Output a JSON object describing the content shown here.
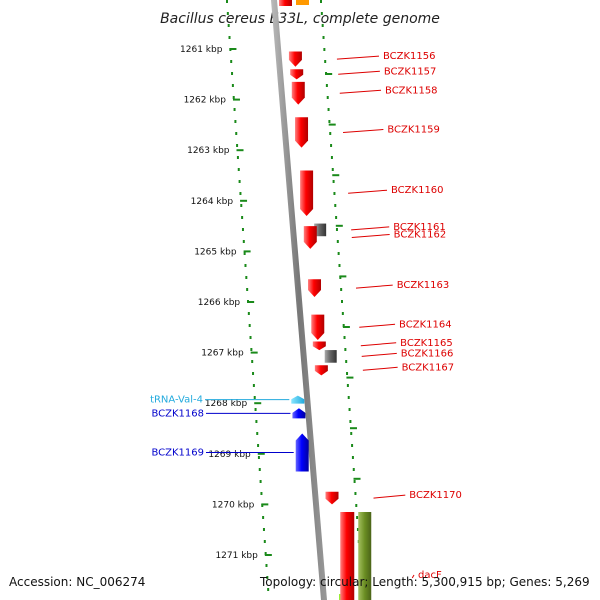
{
  "title": "Bacillus cereus E33L, complete genome",
  "footer": {
    "accession": "Accession: NC_006274",
    "topology": "Topology: circular; Length: 5,300,915 bp; Genes: 5,269"
  },
  "colors": {
    "red_gene": "#ff0000",
    "blue_gene": "#0000ff",
    "gray_gene": "#666666",
    "trna": "#33ccee",
    "olive_gene": "#6b8e23",
    "axis_ticks": "#1a8a1a",
    "red_label": "#dd0000",
    "blue_label": "#0000cc",
    "trna_label": "#22aadd"
  },
  "ruler": {
    "unit": "kbp",
    "ticks": [
      {
        "label": "1261 kbp",
        "kbp": 1261
      },
      {
        "label": "1262 kbp",
        "kbp": 1262
      },
      {
        "label": "1263 kbp",
        "kbp": 1263
      },
      {
        "label": "1264 kbp",
        "kbp": 1264
      },
      {
        "label": "1265 kbp",
        "kbp": 1265
      },
      {
        "label": "1266 kbp",
        "kbp": 1266
      },
      {
        "label": "1267 kbp",
        "kbp": 1267
      },
      {
        "label": "1268 kbp",
        "kbp": 1268
      },
      {
        "label": "1269 kbp",
        "kbp": 1269
      },
      {
        "label": "1270 kbp",
        "kbp": 1270
      },
      {
        "label": "1271 kbp",
        "kbp": 1271
      }
    ]
  },
  "genes": [
    {
      "name": "BCZK1156",
      "strand": "-",
      "color": "red",
      "start": 1261.05,
      "end": 1261.35
    },
    {
      "name": "BCZK1157",
      "strand": "-",
      "color": "red",
      "start": 1261.4,
      "end": 1261.6
    },
    {
      "name": "BCZK1158",
      "strand": "-",
      "color": "red",
      "start": 1261.65,
      "end": 1262.1
    },
    {
      "name": "BCZK1159",
      "strand": "-",
      "color": "red",
      "start": 1262.35,
      "end": 1262.95
    },
    {
      "name": "BCZK1160",
      "strand": "-",
      "color": "red",
      "start": 1263.4,
      "end": 1264.3
    },
    {
      "name": "BCZK1161",
      "strand": "+",
      "color": "gray",
      "start": 1264.45,
      "end": 1264.7
    },
    {
      "name": "BCZK1162",
      "strand": "-",
      "color": "red",
      "start": 1264.5,
      "end": 1264.95
    },
    {
      "name": "BCZK1163",
      "strand": "-",
      "color": "red",
      "start": 1265.55,
      "end": 1265.9
    },
    {
      "name": "BCZK1164",
      "strand": "-",
      "color": "red",
      "start": 1266.25,
      "end": 1266.75
    },
    {
      "name": "BCZK1165",
      "strand": "-",
      "color": "red",
      "start": 1266.78,
      "end": 1266.95
    },
    {
      "name": "BCZK1166",
      "strand": "+",
      "color": "gray",
      "start": 1266.95,
      "end": 1267.2
    },
    {
      "name": "BCZK1167",
      "strand": "-",
      "color": "red",
      "start": 1267.25,
      "end": 1267.45
    },
    {
      "name": "tRNA-Val-4",
      "strand": "-",
      "color": "trna",
      "start": 1267.85,
      "end": 1267.95
    },
    {
      "name": "BCZK1168",
      "strand": "-",
      "color": "blue",
      "start": 1268.1,
      "end": 1268.3
    },
    {
      "name": "BCZK1169",
      "strand": "-",
      "color": "blue",
      "start": 1268.6,
      "end": 1269.35
    },
    {
      "name": "BCZK1170",
      "strand": "-",
      "color": "red",
      "start": 1269.75,
      "end": 1270.0
    },
    {
      "name": "dacF",
      "strand": "-",
      "color": "olive",
      "start": 1270.15,
      "end": 1271.85
    }
  ]
}
